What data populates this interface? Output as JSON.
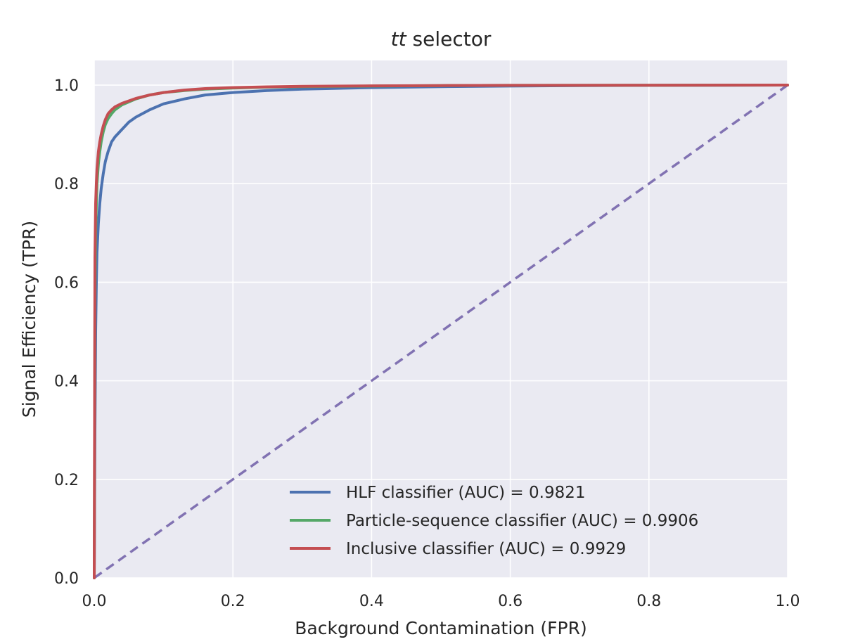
{
  "chart_data": {
    "type": "line",
    "title_italic": "tt",
    "title_rest": " selector",
    "xlabel": "Background Contamination (FPR)",
    "ylabel": "Signal Efficiency (TPR)",
    "xlim": [
      0.0,
      1.0
    ],
    "ylim": [
      0.0,
      1.05
    ],
    "xticks": [
      "0.0",
      "0.2",
      "0.4",
      "0.6",
      "0.8",
      "1.0"
    ],
    "yticks": [
      "0.0",
      "0.2",
      "0.4",
      "0.6",
      "0.8",
      "1.0"
    ],
    "grid": true,
    "background": "#eaeaf2",
    "legend_position": "lower-right",
    "series": [
      {
        "name": "HLF classifier (AUC) = 0.9821",
        "color": "#4c72b0",
        "x": [
          0.0,
          0.001,
          0.002,
          0.003,
          0.004,
          0.006,
          0.008,
          0.01,
          0.013,
          0.016,
          0.02,
          0.025,
          0.03,
          0.04,
          0.05,
          0.06,
          0.08,
          0.1,
          0.13,
          0.16,
          0.2,
          0.25,
          0.3,
          0.4,
          0.5,
          0.6,
          0.7,
          0.8,
          0.9,
          1.0
        ],
        "y": [
          0.0,
          0.3,
          0.5,
          0.6,
          0.66,
          0.72,
          0.76,
          0.79,
          0.82,
          0.845,
          0.865,
          0.885,
          0.895,
          0.91,
          0.925,
          0.935,
          0.95,
          0.962,
          0.972,
          0.98,
          0.985,
          0.989,
          0.992,
          0.995,
          0.997,
          0.998,
          0.999,
          0.9995,
          0.9998,
          1.0
        ]
      },
      {
        "name": "Particle-sequence classifier (AUC) = 0.9906",
        "color": "#55a868",
        "x": [
          0.0,
          0.001,
          0.002,
          0.003,
          0.004,
          0.006,
          0.008,
          0.01,
          0.013,
          0.016,
          0.02,
          0.025,
          0.03,
          0.04,
          0.05,
          0.06,
          0.08,
          0.1,
          0.13,
          0.16,
          0.2,
          0.25,
          0.3,
          0.4,
          0.5,
          0.6,
          0.8,
          1.0
        ],
        "y": [
          0.0,
          0.55,
          0.7,
          0.76,
          0.8,
          0.84,
          0.865,
          0.885,
          0.905,
          0.92,
          0.932,
          0.942,
          0.95,
          0.96,
          0.966,
          0.972,
          0.98,
          0.985,
          0.989,
          0.992,
          0.994,
          0.996,
          0.997,
          0.998,
          0.999,
          0.9995,
          0.9998,
          1.0
        ]
      },
      {
        "name": "Inclusive classifier (AUC) = 0.9929",
        "color": "#c44e52",
        "x": [
          0.0,
          0.001,
          0.002,
          0.003,
          0.004,
          0.006,
          0.008,
          0.01,
          0.013,
          0.016,
          0.02,
          0.025,
          0.03,
          0.04,
          0.05,
          0.06,
          0.08,
          0.1,
          0.13,
          0.16,
          0.2,
          0.25,
          0.3,
          0.4,
          0.5,
          0.6,
          0.8,
          1.0
        ],
        "y": [
          0.0,
          0.65,
          0.76,
          0.8,
          0.83,
          0.865,
          0.885,
          0.9,
          0.917,
          0.93,
          0.942,
          0.95,
          0.956,
          0.963,
          0.968,
          0.973,
          0.98,
          0.985,
          0.99,
          0.993,
          0.995,
          0.9965,
          0.9975,
          0.9985,
          0.999,
          0.9995,
          0.9998,
          1.0
        ]
      },
      {
        "color": "#8172b2",
        "dashed": true,
        "x": [
          0.0,
          1.0
        ],
        "y": [
          0.0,
          1.0
        ]
      }
    ]
  }
}
